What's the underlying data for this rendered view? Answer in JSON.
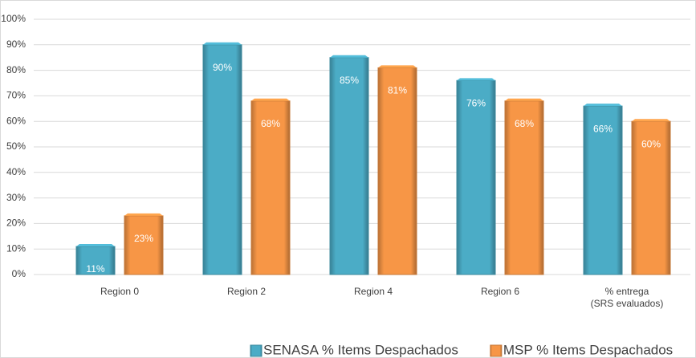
{
  "chart_data": {
    "type": "bar",
    "categories": [
      "Region 0",
      "Region 2",
      "Region 4",
      "Region 6",
      "% entrega\n(SRS evaluados)"
    ],
    "series": [
      {
        "name": "SENASA % Items Despachados",
        "color": "#4bacc6",
        "values": [
          11,
          90,
          85,
          76,
          66
        ],
        "value_labels": [
          "11%",
          "90%",
          "85%",
          "76%",
          "66%"
        ]
      },
      {
        "name": "MSP % Items Despachados",
        "color": "#f79646",
        "values": [
          23,
          68,
          81,
          68,
          60
        ],
        "value_labels": [
          "23%",
          "68%",
          "81%",
          "68%",
          "60%"
        ]
      }
    ],
    "ylim": [
      0,
      100
    ],
    "yticks": [
      {
        "value": 0,
        "label": "0%"
      },
      {
        "value": 10,
        "label": "10%"
      },
      {
        "value": 20,
        "label": "20%"
      },
      {
        "value": 30,
        "label": "30%"
      },
      {
        "value": 40,
        "label": "40%"
      },
      {
        "value": 50,
        "label": "50%"
      },
      {
        "value": 60,
        "label": "60%"
      },
      {
        "value": 70,
        "label": "70%"
      },
      {
        "value": 80,
        "label": "80%"
      },
      {
        "value": 90,
        "label": "90%"
      },
      {
        "value": 100,
        "label": "100%"
      }
    ],
    "grid": true,
    "legend": "bottom"
  }
}
